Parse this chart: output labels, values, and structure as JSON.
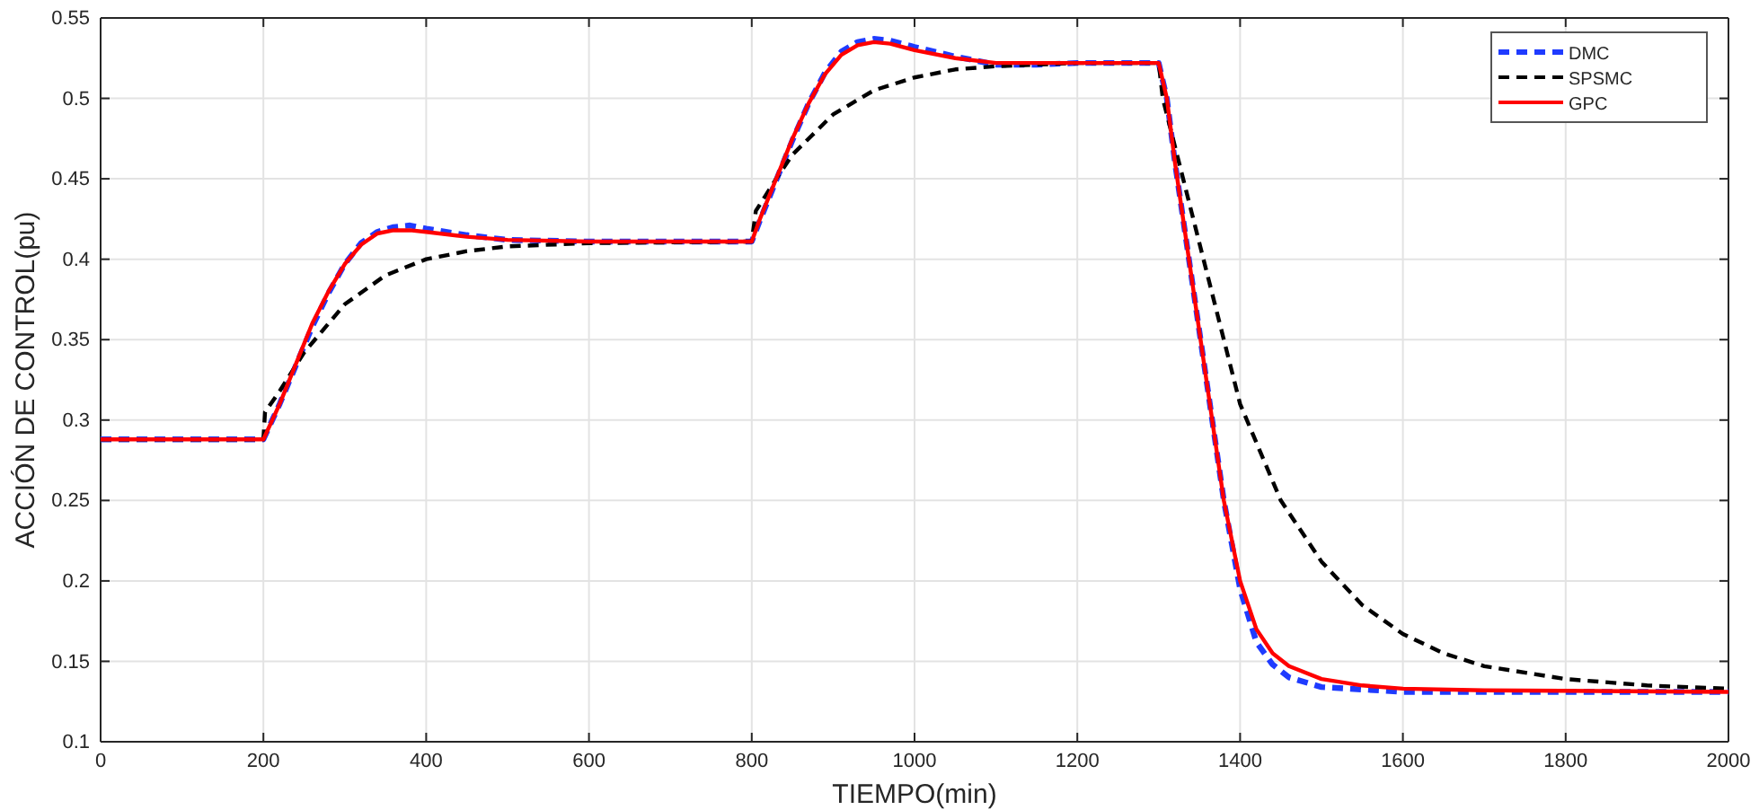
{
  "chart_data": {
    "type": "line",
    "xlabel": "TIEMPO(min)",
    "ylabel": "ACCIÓN DE CONTROL(pu)",
    "xlim": [
      0,
      2000
    ],
    "xticks": [
      0,
      200,
      400,
      600,
      800,
      1000,
      1200,
      1400,
      1600,
      1800,
      2000
    ],
    "ylim": [
      0.1,
      0.55
    ],
    "yticks": [
      0.1,
      0.15,
      0.2,
      0.25,
      0.3,
      0.35,
      0.4,
      0.45,
      0.5,
      0.55
    ],
    "grid": true,
    "legend": "top right",
    "series": [
      {
        "name": "DMC",
        "color": "#1f3bff",
        "line_style": "dashed",
        "x": [
          0,
          200,
          220,
          240,
          260,
          280,
          300,
          320,
          340,
          360,
          380,
          400,
          450,
          500,
          600,
          800,
          810,
          830,
          850,
          870,
          890,
          910,
          930,
          950,
          970,
          1000,
          1050,
          1100,
          1150,
          1200,
          1300,
          1310,
          1320,
          1340,
          1360,
          1380,
          1400,
          1420,
          1440,
          1460,
          1500,
          1600,
          1700,
          2000
        ],
        "values": [
          0.288,
          0.288,
          0.31,
          0.334,
          0.358,
          0.379,
          0.397,
          0.41,
          0.417,
          0.42,
          0.421,
          0.419,
          0.415,
          0.412,
          0.411,
          0.411,
          0.424,
          0.449,
          0.474,
          0.497,
          0.516,
          0.529,
          0.535,
          0.537,
          0.536,
          0.532,
          0.526,
          0.521,
          0.521,
          0.522,
          0.522,
          0.5,
          0.46,
          0.39,
          0.32,
          0.25,
          0.195,
          0.162,
          0.148,
          0.14,
          0.134,
          0.131,
          0.131,
          0.131
        ]
      },
      {
        "name": "SPSMC",
        "color": "#000000",
        "line_style": "dashed",
        "x": [
          0,
          200,
          202,
          220,
          250,
          300,
          350,
          400,
          450,
          500,
          600,
          800,
          805,
          830,
          850,
          900,
          950,
          1000,
          1050,
          1100,
          1200,
          1300,
          1305,
          1320,
          1340,
          1360,
          1380,
          1400,
          1450,
          1500,
          1550,
          1600,
          1650,
          1700,
          1800,
          1900,
          2000
        ],
        "values": [
          0.288,
          0.288,
          0.305,
          0.318,
          0.342,
          0.372,
          0.39,
          0.4,
          0.405,
          0.408,
          0.41,
          0.411,
          0.43,
          0.45,
          0.465,
          0.49,
          0.505,
          0.513,
          0.518,
          0.52,
          0.522,
          0.522,
          0.5,
          0.47,
          0.43,
          0.39,
          0.35,
          0.31,
          0.25,
          0.212,
          0.185,
          0.167,
          0.155,
          0.147,
          0.139,
          0.135,
          0.133
        ]
      },
      {
        "name": "GPC",
        "color": "#ff0000",
        "line_style": "solid",
        "x": [
          0,
          200,
          220,
          240,
          260,
          280,
          300,
          320,
          340,
          360,
          380,
          400,
          450,
          500,
          600,
          800,
          810,
          830,
          850,
          870,
          890,
          910,
          930,
          950,
          970,
          1000,
          1050,
          1100,
          1200,
          1300,
          1310,
          1320,
          1340,
          1360,
          1380,
          1400,
          1420,
          1440,
          1460,
          1500,
          1550,
          1600,
          1700,
          2000
        ],
        "values": [
          0.288,
          0.288,
          0.31,
          0.335,
          0.36,
          0.38,
          0.397,
          0.409,
          0.416,
          0.418,
          0.418,
          0.417,
          0.414,
          0.412,
          0.411,
          0.411,
          0.425,
          0.45,
          0.475,
          0.497,
          0.515,
          0.527,
          0.533,
          0.535,
          0.534,
          0.53,
          0.525,
          0.522,
          0.522,
          0.522,
          0.5,
          0.46,
          0.39,
          0.32,
          0.25,
          0.2,
          0.17,
          0.155,
          0.147,
          0.139,
          0.135,
          0.133,
          0.132,
          0.131
        ]
      }
    ]
  }
}
